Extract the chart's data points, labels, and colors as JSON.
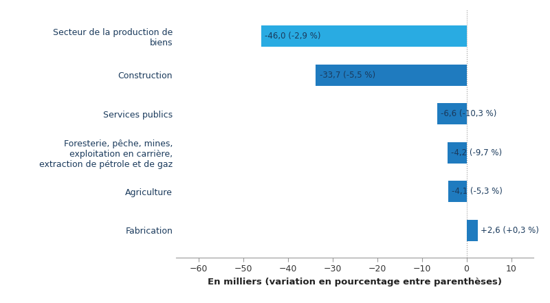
{
  "categories": [
    "Fabrication",
    "Agriculture",
    "Foresterie, pêche, mines,\nexploitation en carrière,\nextraction de pétrole et de gaz",
    "Services publics",
    "Construction",
    "Secteur de la production de\nbiens"
  ],
  "values": [
    2.6,
    -4.1,
    -4.2,
    -6.6,
    -33.7,
    -46.0
  ],
  "labels": [
    "+2,6 (+0,3 %)",
    "-4,1 (-5,3 %)",
    "-4,2 (-9,7 %)",
    "-6,6 (-10,3 %)",
    "-33,7 (-5,5 %)",
    "-46,0 (-2,9 %)"
  ],
  "bar_colors": [
    "#1f7bbf",
    "#1f7bbf",
    "#1f7bbf",
    "#1f7bbf",
    "#1f7bbf",
    "#29abe2"
  ],
  "xlabel": "En milliers (variation en pourcentage entre parenthèses)",
  "xlim": [
    -65,
    15
  ],
  "xticks": [
    -60,
    -50,
    -40,
    -30,
    -20,
    -10,
    0,
    10
  ],
  "background_color": "#ffffff",
  "text_color": "#1a3a5c",
  "label_color": "#1a3a5c",
  "bar_height": 0.55,
  "figsize": [
    8.0,
    4.41
  ],
  "dpi": 100
}
